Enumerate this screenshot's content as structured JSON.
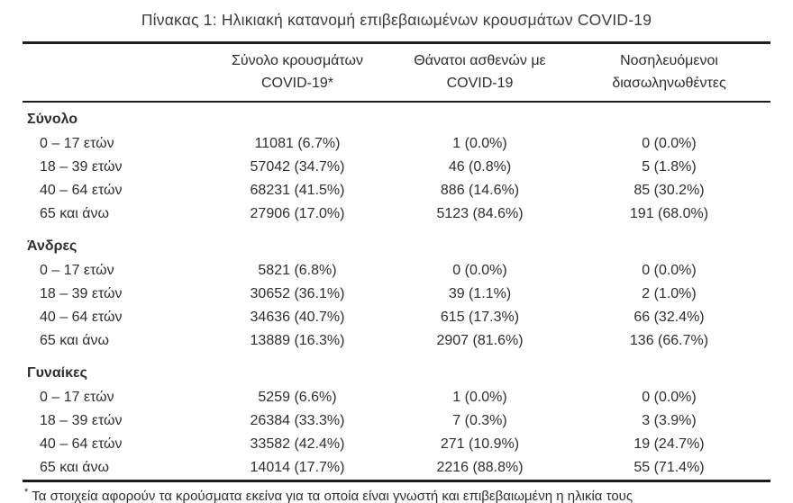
{
  "title": "Πίνακας 1: Ηλικιακή κατανομή επιβεβαιωμένων κρουσμάτων COVID-19",
  "table": {
    "headers": [
      {
        "line1": "Σύνολο κρουσμάτων",
        "line2": "COVID-19*"
      },
      {
        "line1": "Θάνατοι ασθενών με",
        "line2": "COVID-19"
      },
      {
        "line1": "Νοσηλευόμενοι",
        "line2": "διασωληνωθέντες"
      }
    ],
    "sections": [
      {
        "label": "Σύνολο",
        "rows": [
          {
            "age": "0 – 17 ετών",
            "cases": "11081 (6.7%)",
            "deaths": "1 (0.0%)",
            "intubated": "0 (0.0%)"
          },
          {
            "age": "18 – 39 ετών",
            "cases": "57042 (34.7%)",
            "deaths": "46 (0.8%)",
            "intubated": "5 (1.8%)"
          },
          {
            "age": "40 – 64 ετών",
            "cases": "68231 (41.5%)",
            "deaths": "886 (14.6%)",
            "intubated": "85 (30.2%)"
          },
          {
            "age": "65 και άνω",
            "cases": "27906 (17.0%)",
            "deaths": "5123 (84.6%)",
            "intubated": "191 (68.0%)"
          }
        ]
      },
      {
        "label": "Άνδρες",
        "rows": [
          {
            "age": "0 – 17 ετών",
            "cases": "5821 (6.8%)",
            "deaths": "0 (0.0%)",
            "intubated": "0 (0.0%)"
          },
          {
            "age": "18 – 39 ετών",
            "cases": "30652 (36.1%)",
            "deaths": "39 (1.1%)",
            "intubated": "2 (1.0%)"
          },
          {
            "age": "40 – 64 ετών",
            "cases": "34636 (40.7%)",
            "deaths": "615 (17.3%)",
            "intubated": "66 (32.4%)"
          },
          {
            "age": "65 και άνω",
            "cases": "13889 (16.3%)",
            "deaths": "2907 (81.6%)",
            "intubated": "136 (66.7%)"
          }
        ]
      },
      {
        "label": "Γυναίκες",
        "rows": [
          {
            "age": "0 – 17 ετών",
            "cases": "5259 (6.6%)",
            "deaths": "1 (0.0%)",
            "intubated": "0 (0.0%)"
          },
          {
            "age": "18 – 39 ετών",
            "cases": "26384 (33.3%)",
            "deaths": "7 (0.3%)",
            "intubated": "3 (3.9%)"
          },
          {
            "age": "40 – 64 ετών",
            "cases": "33582 (42.4%)",
            "deaths": "271 (10.9%)",
            "intubated": "19 (24.7%)"
          },
          {
            "age": "65 και άνω",
            "cases": "14014 (17.7%)",
            "deaths": "2216 (88.8%)",
            "intubated": "55 (71.4%)"
          }
        ]
      }
    ]
  },
  "footnote": {
    "marker": "*",
    "text": "Τα στοιχεία αφορούν τα κρούσματα εκείνα για τα οποία είναι γνωστή και επιβεβαιωμένη η ηλικία τους"
  }
}
